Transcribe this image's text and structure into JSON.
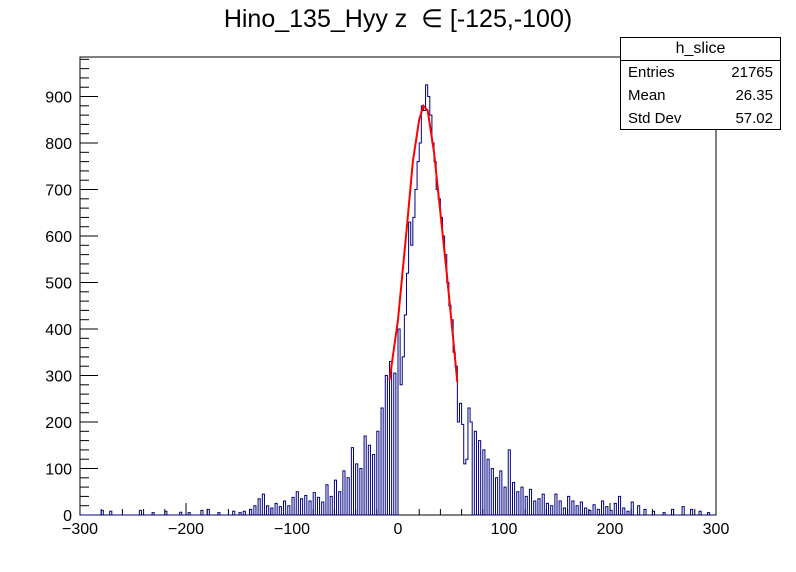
{
  "title": "Hino_135_Hyy z  ∈ [-125,-100)",
  "stats": {
    "name": "h_slice",
    "rows": [
      {
        "key": "Entries",
        "value": "21765"
      },
      {
        "key": "Mean",
        "value": "26.35"
      },
      {
        "key": "Std Dev",
        "value": "57.02"
      }
    ]
  },
  "chart_data": {
    "type": "histogram",
    "title": "Hino_135_Hyy z  ∈ [-125,-100)",
    "xlabel": "",
    "ylabel": "",
    "xlim": [
      -300,
      300
    ],
    "ylim": [
      0,
      985
    ],
    "x_ticks": [
      -300,
      -200,
      -100,
      0,
      100,
      200,
      300
    ],
    "y_ticks": [
      0,
      100,
      200,
      300,
      400,
      500,
      600,
      700,
      800,
      900
    ],
    "line_color": "#000080",
    "fit_color": "#ff0000",
    "series": [
      {
        "kind": "histogram",
        "bin_width": 2,
        "points": [
          [
            -280,
            10
          ],
          [
            -272,
            8
          ],
          [
            -244,
            10
          ],
          [
            -232,
            5
          ],
          [
            -220,
            8
          ],
          [
            -206,
            6
          ],
          [
            -198,
            5
          ],
          [
            -186,
            10
          ],
          [
            -180,
            12
          ],
          [
            -170,
            5
          ],
          [
            -156,
            8
          ],
          [
            -150,
            5
          ],
          [
            -146,
            8
          ],
          [
            -140,
            12
          ],
          [
            -136,
            20
          ],
          [
            -132,
            35
          ],
          [
            -128,
            45
          ],
          [
            -124,
            20
          ],
          [
            -120,
            15
          ],
          [
            -116,
            25
          ],
          [
            -112,
            18
          ],
          [
            -108,
            30
          ],
          [
            -104,
            20
          ],
          [
            -100,
            38
          ],
          [
            -96,
            50
          ],
          [
            -92,
            35
          ],
          [
            -88,
            42
          ],
          [
            -84,
            30
          ],
          [
            -80,
            48
          ],
          [
            -76,
            38
          ],
          [
            -72,
            28
          ],
          [
            -68,
            65
          ],
          [
            -64,
            40
          ],
          [
            -60,
            75
          ],
          [
            -56,
            50
          ],
          [
            -52,
            95
          ],
          [
            -48,
            80
          ],
          [
            -44,
            145
          ],
          [
            -40,
            110
          ],
          [
            -36,
            100
          ],
          [
            -32,
            170
          ],
          [
            -28,
            150
          ],
          [
            -24,
            130
          ],
          [
            -20,
            180
          ],
          [
            -16,
            230
          ],
          [
            -12,
            300
          ],
          [
            -8,
            330
          ],
          [
            -4,
            305
          ],
          [
            0,
            400
          ],
          [
            2,
            280
          ],
          [
            4,
            340
          ],
          [
            6,
            430
          ],
          [
            8,
            520
          ],
          [
            10,
            630
          ],
          [
            12,
            580
          ],
          [
            14,
            640
          ],
          [
            16,
            700
          ],
          [
            18,
            760
          ],
          [
            20,
            800
          ],
          [
            22,
            880
          ],
          [
            24,
            870
          ],
          [
            26,
            925
          ],
          [
            28,
            900
          ],
          [
            30,
            860
          ],
          [
            32,
            800
          ],
          [
            34,
            760
          ],
          [
            36,
            700
          ],
          [
            38,
            680
          ],
          [
            40,
            640
          ],
          [
            42,
            600
          ],
          [
            44,
            560
          ],
          [
            46,
            500
          ],
          [
            48,
            450
          ],
          [
            50,
            420
          ],
          [
            52,
            350
          ],
          [
            54,
            320
          ],
          [
            56,
            200
          ],
          [
            58,
            240
          ],
          [
            60,
            195
          ],
          [
            62,
            110
          ],
          [
            64,
            120
          ],
          [
            66,
            230
          ],
          [
            68,
            200
          ],
          [
            72,
            180
          ],
          [
            76,
            160
          ],
          [
            80,
            140
          ],
          [
            84,
            120
          ],
          [
            88,
            100
          ],
          [
            92,
            80
          ],
          [
            96,
            95
          ],
          [
            100,
            60
          ],
          [
            104,
            140
          ],
          [
            108,
            70
          ],
          [
            112,
            50
          ],
          [
            116,
            60
          ],
          [
            120,
            40
          ],
          [
            124,
            55
          ],
          [
            128,
            30
          ],
          [
            132,
            35
          ],
          [
            136,
            45
          ],
          [
            140,
            25
          ],
          [
            144,
            20
          ],
          [
            148,
            45
          ],
          [
            152,
            30
          ],
          [
            156,
            15
          ],
          [
            160,
            40
          ],
          [
            164,
            30
          ],
          [
            168,
            20
          ],
          [
            172,
            28
          ],
          [
            176,
            15
          ],
          [
            180,
            10
          ],
          [
            184,
            22
          ],
          [
            188,
            12
          ],
          [
            192,
            30
          ],
          [
            196,
            18
          ],
          [
            200,
            10
          ],
          [
            204,
            25
          ],
          [
            208,
            40
          ],
          [
            212,
            15
          ],
          [
            216,
            8
          ],
          [
            220,
            28
          ],
          [
            226,
            20
          ],
          [
            232,
            12
          ],
          [
            240,
            8
          ],
          [
            250,
            5
          ],
          [
            258,
            12
          ],
          [
            268,
            18
          ],
          [
            276,
            12
          ],
          [
            284,
            8
          ],
          [
            292,
            5
          ]
        ]
      },
      {
        "kind": "fit",
        "points": [
          [
            -8,
            290
          ],
          [
            0,
            420
          ],
          [
            8,
            610
          ],
          [
            14,
            760
          ],
          [
            20,
            850
          ],
          [
            24,
            880
          ],
          [
            28,
            870
          ],
          [
            34,
            780
          ],
          [
            40,
            650
          ],
          [
            46,
            520
          ],
          [
            52,
            380
          ],
          [
            56,
            285
          ]
        ]
      }
    ]
  }
}
